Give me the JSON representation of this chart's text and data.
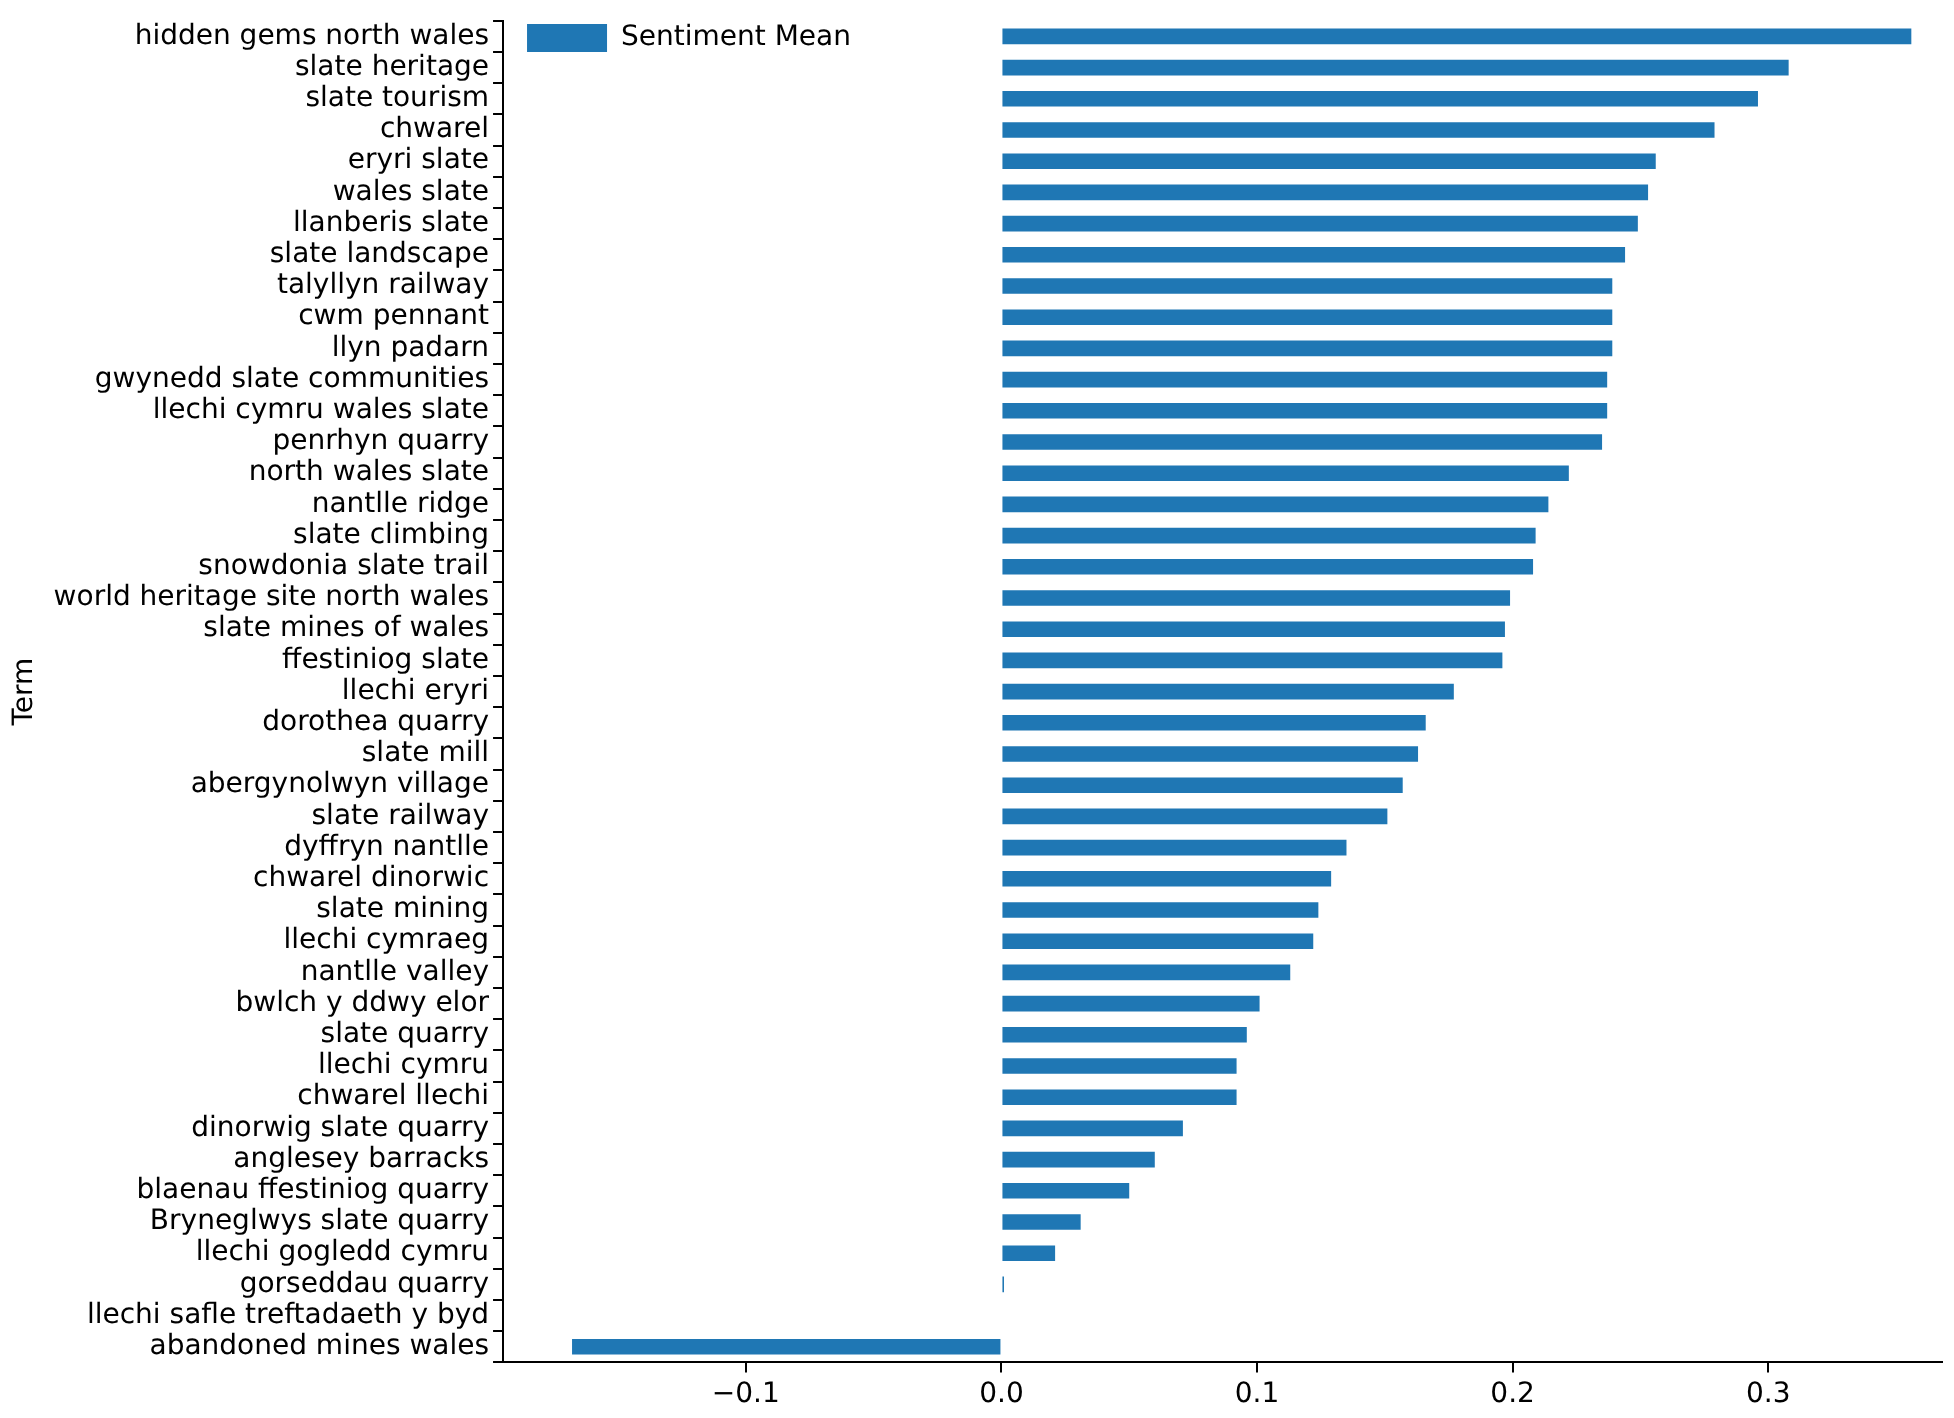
{
  "chart_data": {
    "type": "bar",
    "orientation": "horizontal",
    "ylabel": "Term",
    "legend": "top left",
    "grid": false,
    "categories": [
      "hidden gems north wales",
      "slate heritage",
      "slate tourism",
      "chwarel",
      "eryri slate",
      "wales slate",
      "llanberis slate",
      "slate landscape",
      "talyllyn railway",
      "cwm pennant",
      "llyn padarn",
      "gwynedd slate communities",
      "llechi cymru wales slate",
      "penrhyn quarry",
      "north wales slate",
      "nantlle ridge",
      "slate climbing",
      "snowdonia slate trail",
      "world heritage site north wales",
      "slate mines of wales",
      "ffestiniog slate",
      "llechi eryri",
      "dorothea quarry",
      "slate mill",
      "abergynolwyn village",
      "slate railway",
      "dyffryn nantlle",
      "chwarel dinorwic",
      "slate mining",
      "llechi cymraeg",
      "nantlle valley",
      "bwlch y ddwy elor",
      "slate quarry",
      "llechi cymru",
      "chwarel llechi",
      "dinorwig slate quarry",
      "anglesey barracks",
      "blaenau ffestiniog quarry",
      "Bryneglwys slate quarry",
      "llechi gogledd cymru",
      "gorseddau quarry",
      "llechi safle treftadaeth y byd",
      "abandoned mines wales"
    ],
    "series": [
      {
        "name": "Sentiment Mean",
        "color": "#1f77b4",
        "values": [
          0.356,
          0.308,
          0.296,
          0.279,
          0.256,
          0.253,
          0.249,
          0.244,
          0.239,
          0.239,
          0.239,
          0.237,
          0.237,
          0.235,
          0.222,
          0.214,
          0.209,
          0.208,
          0.199,
          0.197,
          0.196,
          0.177,
          0.166,
          0.163,
          0.157,
          0.151,
          0.135,
          0.129,
          0.124,
          0.122,
          0.113,
          0.101,
          0.096,
          0.092,
          0.092,
          0.071,
          0.06,
          0.05,
          0.031,
          0.021,
          0.001,
          0,
          -0.168
        ]
      }
    ],
    "xlim": [
      -0.195,
      0.368
    ],
    "xticks": [
      {
        "value": -0.1,
        "label": "−0.1"
      },
      {
        "value": 0,
        "label": "0.0"
      },
      {
        "value": 0.1,
        "label": "0.1"
      },
      {
        "value": 0.2,
        "label": "0.2"
      },
      {
        "value": 0.3,
        "label": "0.3"
      }
    ]
  }
}
